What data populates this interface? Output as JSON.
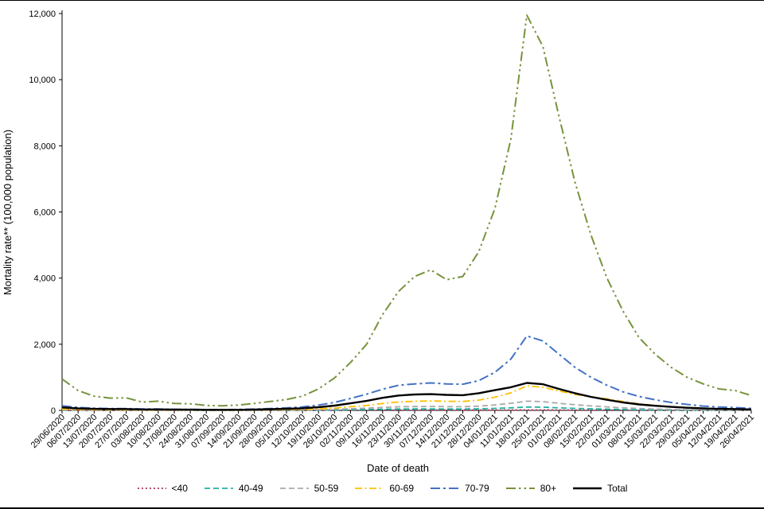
{
  "chart_data": {
    "type": "line",
    "xlabel": "Date of death",
    "ylabel": "Mortality rate** (100,000 population)",
    "ylim": [
      0,
      12000
    ],
    "grid": false,
    "legend_position": "bottom",
    "y_ticks": [
      {
        "value": 0,
        "label": "0"
      },
      {
        "value": 2000,
        "label": "2,000"
      },
      {
        "value": 4000,
        "label": "4,000"
      },
      {
        "value": 6000,
        "label": "6,000"
      },
      {
        "value": 8000,
        "label": "8,000"
      },
      {
        "value": 10000,
        "label": "10,000"
      },
      {
        "value": 12000,
        "label": "12,000"
      }
    ],
    "categories": [
      "29/06/2020",
      "06/07/2020",
      "13/07/2020",
      "20/07/2020",
      "27/07/2020",
      "03/08/2020",
      "10/08/2020",
      "17/08/2020",
      "24/08/2020",
      "31/08/2020",
      "07/09/2020",
      "14/09/2020",
      "21/09/2020",
      "28/09/2020",
      "05/10/2020",
      "12/10/2020",
      "19/10/2020",
      "26/10/2020",
      "02/11/2020",
      "09/11/2020",
      "16/11/2020",
      "23/11/2020",
      "30/11/2020",
      "07/12/2020",
      "14/12/2020",
      "21/12/2020",
      "28/12/2020",
      "04/01/2021",
      "11/01/2021",
      "18/01/2021",
      "25/01/2021",
      "01/02/2021",
      "08/02/2021",
      "15/02/2021",
      "22/02/2021",
      "01/03/2021",
      "08/03/2021",
      "15/03/2021",
      "22/03/2021",
      "29/03/2021",
      "05/04/2021",
      "12/04/2021",
      "19/04/2021",
      "26/04/2021"
    ],
    "series": [
      {
        "id": "under-40",
        "name": "<40",
        "color": "#9B2242",
        "style": "dotted",
        "values": [
          1.5,
          1,
          0.8,
          0.7,
          0.7,
          0.5,
          0.5,
          0.4,
          0.4,
          0.3,
          0.3,
          0.4,
          0.5,
          0.6,
          0.8,
          1.1,
          1.6,
          2.3,
          3.2,
          4.2,
          5.2,
          6,
          6.4,
          6.5,
          6.3,
          6.1,
          7,
          8.5,
          10.5,
          13,
          12.3,
          10,
          8,
          6.3,
          4.9,
          3.7,
          2.7,
          2,
          1.5,
          1.1,
          0.8,
          0.6,
          0.5,
          0.4
        ]
      },
      {
        "id": "40-49",
        "name": "40-49",
        "color": "#21B0A4",
        "style": "dashed",
        "values": [
          6,
          4,
          3,
          3,
          3,
          2,
          2,
          2,
          2,
          1,
          1,
          2,
          2,
          3,
          4,
          6,
          9,
          13,
          19,
          26,
          34,
          40,
          43,
          44,
          42,
          41,
          47,
          60,
          78,
          100,
          95,
          77,
          60,
          47,
          36,
          27,
          19,
          14,
          10,
          7,
          5,
          4,
          3,
          2
        ]
      },
      {
        "id": "50-59",
        "name": "50-59",
        "color": "#A9A9A9",
        "style": "dashed",
        "values": [
          14,
          10,
          7,
          6,
          6,
          5,
          5,
          4,
          4,
          3,
          3,
          4,
          5,
          7,
          10,
          14,
          22,
          34,
          50,
          68,
          90,
          108,
          115,
          118,
          113,
          110,
          128,
          165,
          215,
          280,
          265,
          215,
          170,
          135,
          105,
          78,
          57,
          42,
          30,
          22,
          16,
          12,
          10,
          7
        ]
      },
      {
        "id": "60-69",
        "name": "60-69",
        "color": "#FFC000",
        "style": "dashdot",
        "values": [
          38,
          26,
          19,
          17,
          17,
          12,
          12,
          10,
          9,
          7,
          7,
          8,
          11,
          15,
          21,
          30,
          45,
          70,
          110,
          150,
          210,
          255,
          275,
          285,
          275,
          270,
          310,
          400,
          530,
          740,
          700,
          590,
          480,
          410,
          350,
          270,
          200,
          150,
          110,
          80,
          60,
          45,
          35,
          25
        ]
      },
      {
        "id": "70-79",
        "name": "70-79",
        "color": "#4472C4",
        "style": "longdashdot",
        "values": [
          140,
          90,
          65,
          55,
          55,
          40,
          40,
          32,
          30,
          25,
          25,
          28,
          38,
          55,
          75,
          105,
          160,
          240,
          360,
          490,
          640,
          760,
          800,
          830,
          800,
          790,
          900,
          1150,
          1550,
          2250,
          2100,
          1700,
          1300,
          1000,
          760,
          560,
          420,
          320,
          240,
          180,
          130,
          100,
          85,
          60
        ]
      },
      {
        "id": "80-plus",
        "name": "80+",
        "color": "#77933C",
        "style": "longdashdotdot",
        "values": [
          950,
          600,
          430,
          370,
          380,
          250,
          280,
          210,
          200,
          150,
          140,
          160,
          210,
          270,
          330,
          430,
          650,
          980,
          1450,
          2000,
          2900,
          3600,
          4050,
          4250,
          3950,
          4050,
          4800,
          6100,
          8200,
          11950,
          11000,
          8900,
          6900,
          5300,
          4000,
          3000,
          2200,
          1700,
          1300,
          1000,
          800,
          650,
          600,
          450
        ]
      },
      {
        "id": "total",
        "name": "Total",
        "color": "#000000",
        "style": "solid",
        "values": [
          90,
          60,
          45,
          40,
          40,
          28,
          30,
          24,
          22,
          17,
          16,
          18,
          25,
          35,
          48,
          65,
          95,
          145,
          215,
          285,
          380,
          450,
          480,
          490,
          470,
          460,
          520,
          610,
          700,
          830,
          790,
          650,
          520,
          410,
          320,
          240,
          180,
          140,
          105,
          80,
          60,
          45,
          40,
          30
        ]
      }
    ]
  }
}
